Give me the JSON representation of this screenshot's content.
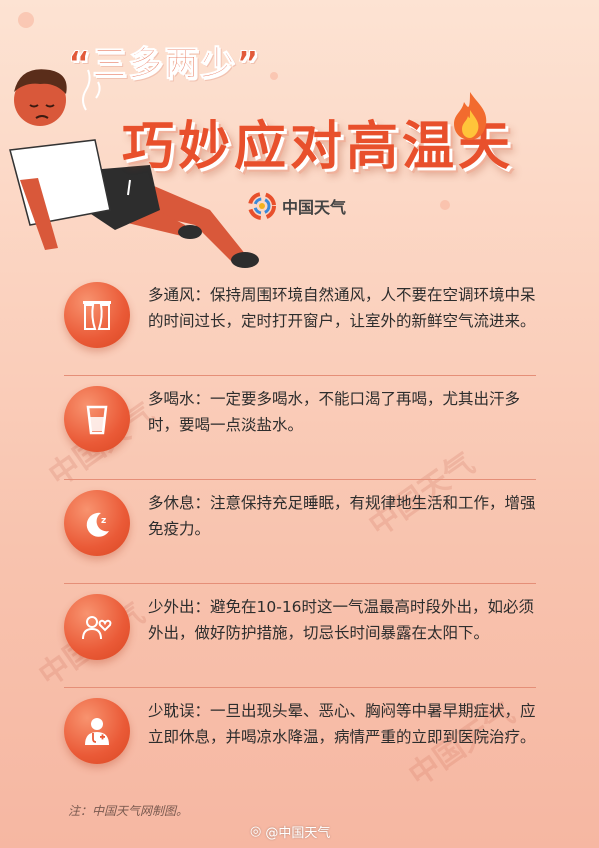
{
  "header": {
    "quote_title": "“三多两少”",
    "main_title": "巧妙应对高温天",
    "brand_name": "中国天气"
  },
  "tips": [
    {
      "icon": "window-curtain-icon",
      "text": "多通风：保持周围环境自然通风，人不要在空调环境中呆的时间过长，定时打开窗户，让室外的新鲜空气流进来。"
    },
    {
      "icon": "water-glass-icon",
      "text": "多喝水：一定要多喝水，不能口渴了再喝，尤其出汗多时，要喝一点淡盐水。"
    },
    {
      "icon": "moon-sleep-icon",
      "text": "多休息：注意保持充足睡眠，有规律地生活和工作，增强免疫力。"
    },
    {
      "icon": "heart-person-icon",
      "text": "少外出：避免在10-16时这一气温最高时段外出，如必须外出，做好防护措施，切忌长时间暴露在太阳下。"
    },
    {
      "icon": "doctor-icon",
      "text": "少耽误：一旦出现头晕、恶心、胸闷等中暑早期症状，应立即休息，并喝凉水降温，病情严重的立即到医院治疗。"
    }
  ],
  "footnote": "注：中国天气网制图。",
  "weibo_handle": "@中国天气",
  "colors": {
    "accent": "#e8502c",
    "icon_bg": "#ea5a37",
    "divider": "#e58f78"
  }
}
